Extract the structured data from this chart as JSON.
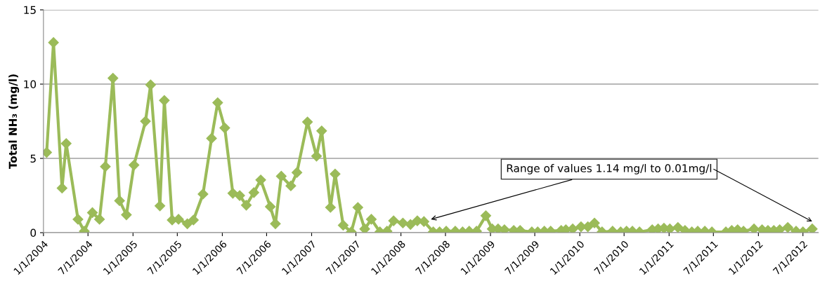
{
  "chart_data": {
    "type": "line",
    "ylabel": "Total NH₃ (mg/l)",
    "x": [
      "2004-01-14",
      "2004-02-11",
      "2004-03-17",
      "2004-04-03",
      "2004-05-21",
      "2004-06-16",
      "2004-07-19",
      "2004-08-17",
      "2004-09-10",
      "2004-10-11",
      "2004-11-07",
      "2004-12-05",
      "2005-01-05",
      "2005-02-21",
      "2005-03-14",
      "2005-04-21",
      "2005-05-09",
      "2005-06-10",
      "2005-07-06",
      "2005-08-11",
      "2005-09-05",
      "2005-10-14",
      "2005-11-18",
      "2005-12-13",
      "2006-01-11",
      "2006-02-13",
      "2006-03-13",
      "2006-04-09",
      "2006-05-10",
      "2006-06-07",
      "2006-07-16",
      "2006-08-06",
      "2006-08-30",
      "2006-10-08",
      "2006-11-02",
      "2006-12-15",
      "2007-01-21",
      "2007-02-11",
      "2007-03-19",
      "2007-04-07",
      "2007-05-10",
      "2007-06-12",
      "2007-07-09",
      "2007-08-06",
      "2007-09-02",
      "2007-10-07",
      "2007-11-05",
      "2007-12-02",
      "2008-01-09",
      "2008-02-09",
      "2008-03-08",
      "2008-04-04",
      "2008-05-12",
      "2008-06-07",
      "2008-07-04",
      "2008-08-10",
      "2008-09-09",
      "2008-10-06",
      "2008-11-05",
      "2008-12-13",
      "2009-01-08",
      "2009-02-01",
      "2009-02-27",
      "2009-04-06",
      "2009-05-02",
      "2009-06-19",
      "2009-07-13",
      "2009-08-09",
      "2009-09-04",
      "2009-10-17",
      "2009-11-05",
      "2009-12-03",
      "2010-01-06",
      "2010-02-03",
      "2010-03-02",
      "2010-04-02",
      "2010-05-15",
      "2010-06-17",
      "2010-07-11",
      "2010-08-04",
      "2010-09-02",
      "2010-10-24",
      "2010-11-17",
      "2010-12-11",
      "2011-01-04",
      "2011-02-06",
      "2011-03-07",
      "2011-04-04",
      "2011-04-28",
      "2011-05-27",
      "2011-06-25",
      "2011-08-21",
      "2011-09-14",
      "2011-10-08",
      "2011-11-01",
      "2011-12-14",
      "2012-01-16",
      "2012-02-09",
      "2012-03-04",
      "2012-03-28",
      "2012-04-30",
      "2012-06-03",
      "2012-07-01",
      "2012-08-08"
    ],
    "series": [
      {
        "color": "#9bbb59",
        "values": [
          5.4,
          12.8,
          3.0,
          6.0,
          0.9,
          0.1,
          1.35,
          0.9,
          4.45,
          10.4,
          2.15,
          1.2,
          4.55,
          7.5,
          9.95,
          1.8,
          8.9,
          0.85,
          0.9,
          0.6,
          0.85,
          2.6,
          6.35,
          8.75,
          7.05,
          2.65,
          2.5,
          1.85,
          2.7,
          3.55,
          1.75,
          0.6,
          3.8,
          3.15,
          4.05,
          7.45,
          5.15,
          6.85,
          1.7,
          3.95,
          0.5,
          0.05,
          1.7,
          0.25,
          0.9,
          0.05,
          0.1,
          0.8,
          0.65,
          0.55,
          0.8,
          0.75,
          0.05,
          0.05,
          0.1,
          0.1,
          0.05,
          0.1,
          0.1,
          1.14,
          0.25,
          0.25,
          0.2,
          0.15,
          0.15,
          0.05,
          0.05,
          0.1,
          0.1,
          0.15,
          0.2,
          0.25,
          0.4,
          0.4,
          0.65,
          0.05,
          0.1,
          0.05,
          0.1,
          0.1,
          0.05,
          0.2,
          0.25,
          0.3,
          0.25,
          0.35,
          0.15,
          0.05,
          0.1,
          0.1,
          0.05,
          0.05,
          0.15,
          0.2,
          0.1,
          0.25,
          0.2,
          0.15,
          0.15,
          0.2,
          0.35,
          0.1,
          0.05,
          0.25
        ]
      }
    ],
    "xlim": [
      "2004-01-01",
      "2012-09-02"
    ],
    "xticks": [
      {
        "value": "2004-01-01",
        "label": "1/1/2004"
      },
      {
        "value": "2004-07-01",
        "label": "7/1/2004"
      },
      {
        "value": "2005-01-01",
        "label": "1/1/2005"
      },
      {
        "value": "2005-07-01",
        "label": "7/1/2005"
      },
      {
        "value": "2006-01-01",
        "label": "1/1/2006"
      },
      {
        "value": "2006-07-01",
        "label": "7/1/2006"
      },
      {
        "value": "2007-01-01",
        "label": "1/1/2007"
      },
      {
        "value": "2007-07-01",
        "label": "7/1/2007"
      },
      {
        "value": "2008-01-01",
        "label": "1/1/2008"
      },
      {
        "value": "2008-07-01",
        "label": "7/1/2008"
      },
      {
        "value": "2009-01-01",
        "label": "1/1/2009"
      },
      {
        "value": "2009-07-01",
        "label": "7/1/2009"
      },
      {
        "value": "2010-01-01",
        "label": "1/1/2010"
      },
      {
        "value": "2010-07-01",
        "label": "7/1/2010"
      },
      {
        "value": "2011-01-01",
        "label": "1/1/2011"
      },
      {
        "value": "2011-07-01",
        "label": "7/1/2011"
      },
      {
        "value": "2012-01-01",
        "label": "1/1/2012"
      },
      {
        "value": "2012-07-01",
        "label": "7/1/2012"
      }
    ],
    "ylim": [
      0,
      15
    ],
    "yticks": [
      0,
      5,
      10,
      15
    ],
    "grid": "y",
    "marker": "diamond",
    "line_style": "solid",
    "annotations": [
      "Range of values 1.14 mg/l to 0.01mg/l"
    ]
  }
}
